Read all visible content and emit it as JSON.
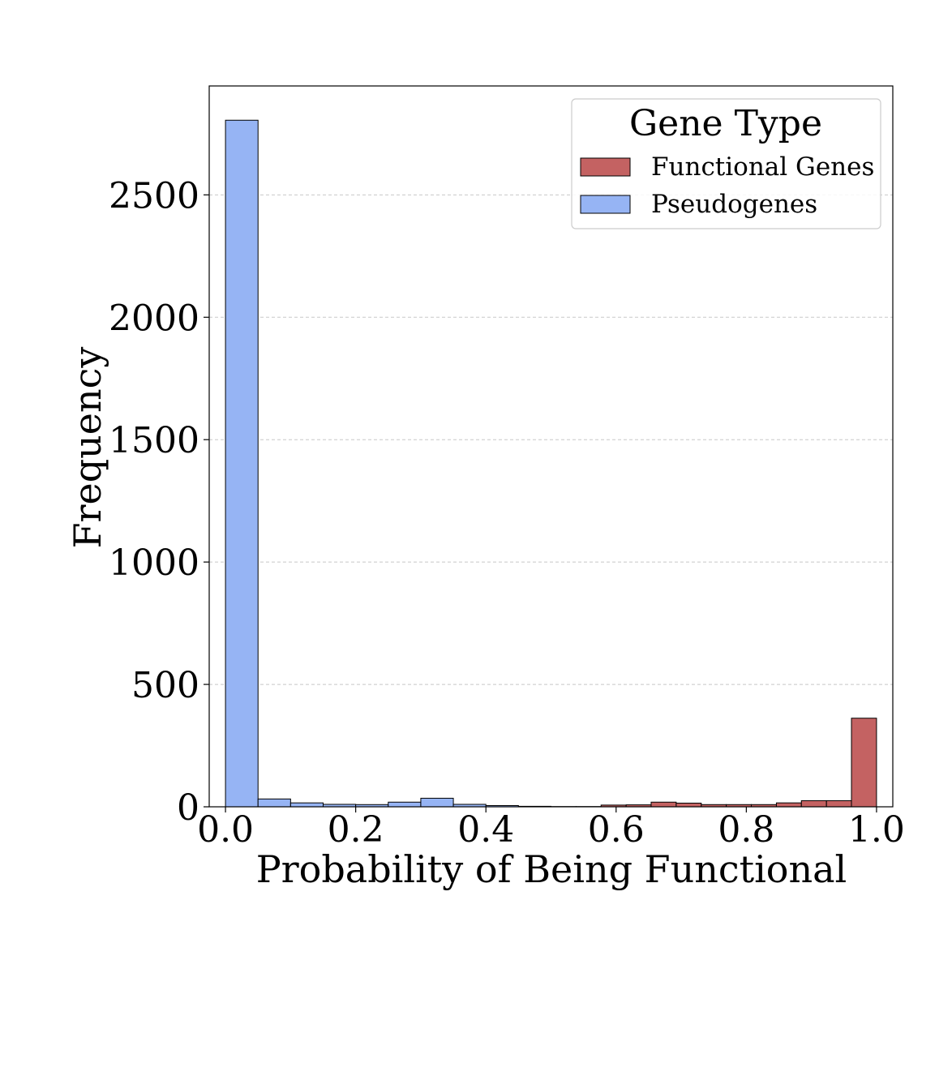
{
  "chart_data": {
    "type": "bar",
    "xlabel": "Probability of Being Functional",
    "ylabel": "Frequency",
    "xlim": [
      -0.025,
      1.025
    ],
    "ylim": [
      0,
      2945
    ],
    "xticks": [
      "0.0",
      "0.2",
      "0.4",
      "0.6",
      "0.8",
      "1.0"
    ],
    "xtick_values": [
      0.0,
      0.2,
      0.4,
      0.6,
      0.8,
      1.0
    ],
    "yticks": [
      "0",
      "500",
      "1000",
      "1500",
      "2000",
      "2500"
    ],
    "ytick_values": [
      0,
      500,
      1000,
      1500,
      2000,
      2500
    ],
    "grid": "y-dashed",
    "legend": {
      "title": "Gene Type",
      "placement": "top-right",
      "entries": [
        "Functional Genes",
        "Pseudogenes"
      ]
    },
    "series": [
      {
        "name": "Pseudogenes",
        "color": "#96b4f4",
        "bins": [
          {
            "x0": 0.0,
            "x1": 0.05,
            "value": 2805
          },
          {
            "x0": 0.05,
            "x1": 0.1,
            "value": 32
          },
          {
            "x0": 0.1,
            "x1": 0.15,
            "value": 16
          },
          {
            "x0": 0.15,
            "x1": 0.2,
            "value": 10
          },
          {
            "x0": 0.2,
            "x1": 0.25,
            "value": 9
          },
          {
            "x0": 0.25,
            "x1": 0.3,
            "value": 19
          },
          {
            "x0": 0.3,
            "x1": 0.35,
            "value": 35
          },
          {
            "x0": 0.35,
            "x1": 0.4,
            "value": 10
          },
          {
            "x0": 0.4,
            "x1": 0.45,
            "value": 5
          },
          {
            "x0": 0.45,
            "x1": 0.5,
            "value": 2
          }
        ]
      },
      {
        "name": "Functional Genes",
        "color": "#c46262",
        "bins": [
          {
            "x0": 0.5,
            "x1": 0.5385,
            "value": 1
          },
          {
            "x0": 0.5385,
            "x1": 0.5769,
            "value": 1
          },
          {
            "x0": 0.5769,
            "x1": 0.6154,
            "value": 7
          },
          {
            "x0": 0.6154,
            "x1": 0.6538,
            "value": 8
          },
          {
            "x0": 0.6538,
            "x1": 0.6923,
            "value": 19
          },
          {
            "x0": 0.6923,
            "x1": 0.7308,
            "value": 15
          },
          {
            "x0": 0.7308,
            "x1": 0.7692,
            "value": 9
          },
          {
            "x0": 0.7692,
            "x1": 0.8077,
            "value": 9
          },
          {
            "x0": 0.8077,
            "x1": 0.8462,
            "value": 9
          },
          {
            "x0": 0.8462,
            "x1": 0.8846,
            "value": 16
          },
          {
            "x0": 0.8846,
            "x1": 0.9231,
            "value": 25
          },
          {
            "x0": 0.9231,
            "x1": 0.9615,
            "value": 25
          },
          {
            "x0": 0.9615,
            "x1": 1.0,
            "value": 362
          }
        ]
      }
    ]
  }
}
